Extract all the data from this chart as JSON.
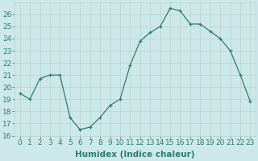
{
  "title": "",
  "xlabel": "Humidex (Indice chaleur)",
  "ylabel": "",
  "x": [
    0,
    1,
    2,
    3,
    4,
    5,
    6,
    7,
    8,
    9,
    10,
    11,
    12,
    13,
    14,
    15,
    16,
    17,
    18,
    19,
    20,
    21,
    22,
    23
  ],
  "y": [
    19.5,
    19.0,
    20.7,
    21.0,
    21.0,
    17.5,
    16.5,
    16.7,
    17.5,
    18.5,
    19.0,
    21.8,
    23.8,
    24.5,
    25.0,
    26.5,
    26.3,
    25.2,
    25.2,
    24.6,
    24.0,
    23.0,
    21.0,
    18.8
  ],
  "line_color": "#2e7d6e",
  "marker": "+",
  "bg_color": "#cce8e8",
  "grid_color": "#b8d0d0",
  "tick_color": "#2e7d6e",
  "ylim": [
    16,
    27
  ],
  "yticks": [
    16,
    17,
    18,
    19,
    20,
    21,
    22,
    23,
    24,
    25,
    26
  ],
  "xticks": [
    0,
    1,
    2,
    3,
    4,
    5,
    6,
    7,
    8,
    9,
    10,
    11,
    12,
    13,
    14,
    15,
    16,
    17,
    18,
    19,
    20,
    21,
    22,
    23
  ],
  "fontsize": 6.5,
  "xlabel_fontsize": 7.5
}
